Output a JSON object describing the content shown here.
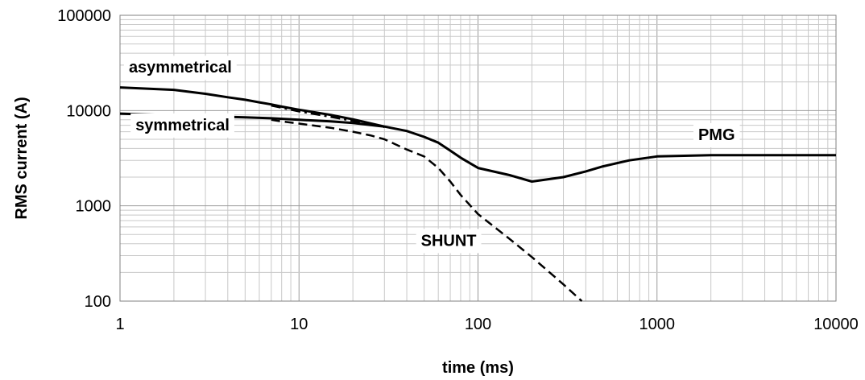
{
  "chart_data": {
    "type": "line",
    "title": "",
    "xlabel": "time (ms)",
    "ylabel": "RMS current (A)",
    "x_scale": "log",
    "y_scale": "log",
    "xlim": [
      1,
      10000
    ],
    "ylim": [
      100,
      100000
    ],
    "x_ticks": [
      "1",
      "10",
      "100",
      "1000",
      "10000"
    ],
    "y_ticks": [
      "100",
      "1000",
      "10000",
      "100000"
    ],
    "grid": true,
    "legend": "none",
    "series": [
      {
        "style": "solid",
        "x": [
          1,
          2,
          3,
          4,
          5,
          6,
          7,
          8,
          10,
          15,
          20,
          30,
          40,
          50,
          60,
          70,
          80,
          100,
          150,
          200,
          300,
          400,
          500,
          700,
          1000,
          2000,
          5000,
          10000
        ],
        "y": [
          17500,
          16500,
          15000,
          13800,
          13000,
          12200,
          11600,
          11000,
          10200,
          9000,
          8100,
          6800,
          6100,
          5300,
          4600,
          3800,
          3200,
          2500,
          2100,
          1800,
          2000,
          2300,
          2600,
          3000,
          3300,
          3400,
          3400,
          3400
        ]
      },
      {
        "style": "solid",
        "x": [
          1,
          2,
          5,
          7,
          10,
          15,
          20,
          30
        ],
        "y": [
          9300,
          8900,
          8500,
          8300,
          8000,
          7700,
          7400,
          6800
        ]
      },
      {
        "style": "dash-dot",
        "x": [
          7,
          10,
          15,
          20,
          25,
          30
        ],
        "y": [
          11300,
          9800,
          8600,
          7800,
          7200,
          6700
        ]
      },
      {
        "style": "dashed",
        "x": [
          7,
          8,
          10,
          15,
          20,
          25,
          30,
          40,
          50,
          60,
          70,
          80,
          100,
          150,
          200,
          300,
          380
        ],
        "y": [
          8000,
          7700,
          7300,
          6600,
          6000,
          5500,
          5000,
          3900,
          3300,
          2500,
          1800,
          1300,
          820,
          450,
          290,
          150,
          100
        ]
      }
    ],
    "annotations": [
      {
        "text": "asymmetrical",
        "x": 1.12,
        "y": 25000
      },
      {
        "text": "symmetrical",
        "x": 1.22,
        "y": 6200
      },
      {
        "text": "PMG",
        "x": 1700,
        "y": 4900
      },
      {
        "text": "SHUNT",
        "x": 48,
        "y": 380
      }
    ]
  }
}
